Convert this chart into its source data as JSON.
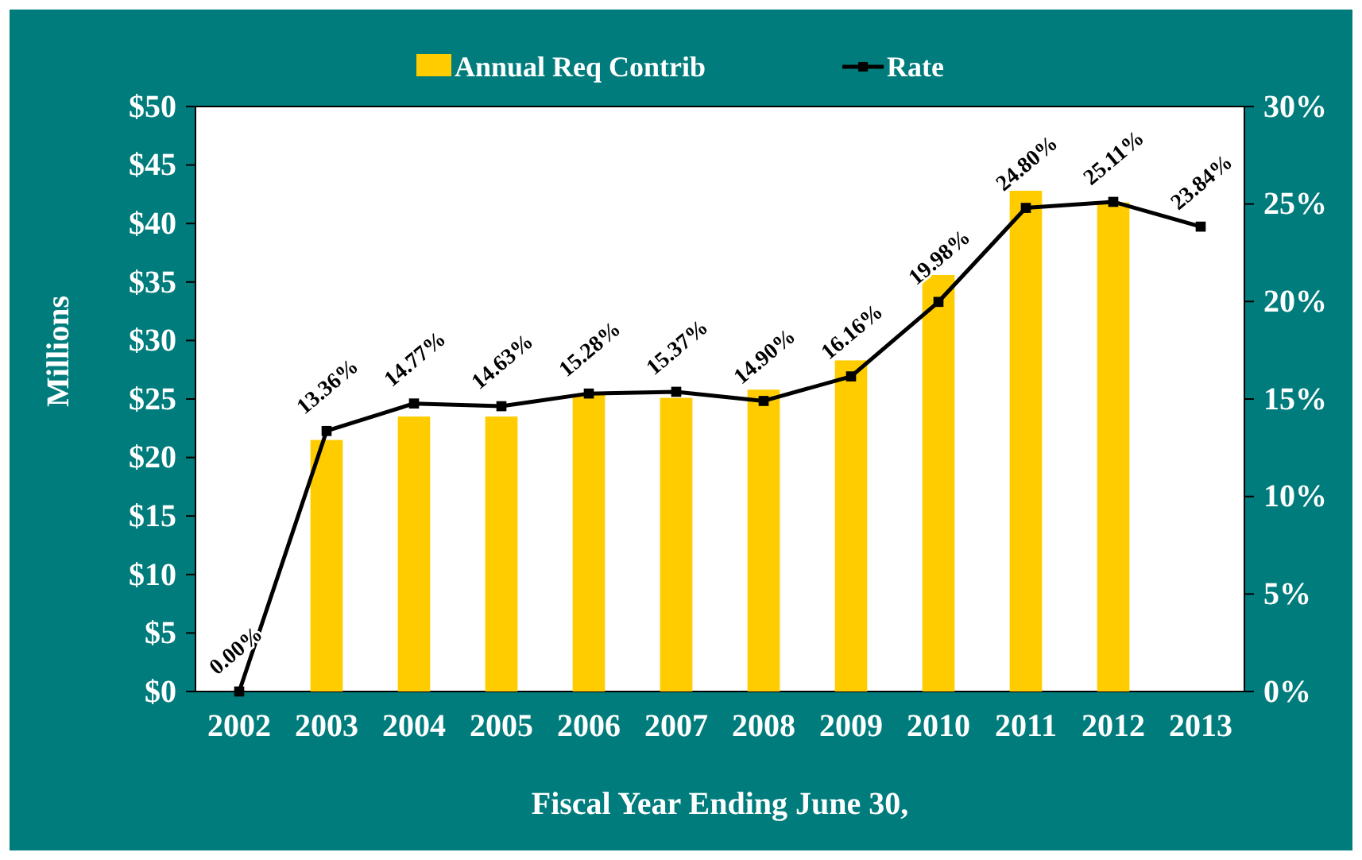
{
  "chart_data": {
    "type": "bar",
    "xlabel": "Fiscal Year Ending June 30,",
    "ylabel": "Millions",
    "categories": [
      "2002",
      "2003",
      "2004",
      "2005",
      "2006",
      "2007",
      "2008",
      "2009",
      "2010",
      "2011",
      "2012",
      "2013"
    ],
    "series": [
      {
        "name": "Annual Req Contrib",
        "color": "#ffcc00",
        "values": [
          null,
          21.5,
          23.5,
          23.5,
          25.4,
          25.1,
          25.8,
          28.3,
          35.6,
          42.8,
          41.8,
          null
        ]
      },
      {
        "name": "Rate",
        "type": "line",
        "axis": "y2",
        "color": "#000000",
        "marker": "square",
        "values": [
          0,
          13.36,
          14.77,
          14.63,
          15.28,
          15.37,
          14.9,
          16.16,
          19.98,
          24.8,
          25.11,
          23.84
        ],
        "value_labels": [
          "0.00%",
          "13.36%",
          "14.77%",
          "14.63%",
          "15.28%",
          "15.37%",
          "14.90%",
          "16.16%",
          "19.98%",
          "24.80%",
          "25.11%",
          "23.84%"
        ]
      }
    ],
    "ylim": [
      0,
      50
    ],
    "yticks": [
      {
        "value": 0,
        "label": "$0"
      },
      {
        "value": 5,
        "label": "$5"
      },
      {
        "value": 10,
        "label": "$10"
      },
      {
        "value": 15,
        "label": "$15"
      },
      {
        "value": 20,
        "label": "$20"
      },
      {
        "value": 25,
        "label": "$25"
      },
      {
        "value": 30,
        "label": "$30"
      },
      {
        "value": 35,
        "label": "$35"
      },
      {
        "value": 40,
        "label": "$40"
      },
      {
        "value": 45,
        "label": "$45"
      },
      {
        "value": 50,
        "label": "$50"
      }
    ],
    "y2lim": [
      0,
      30
    ],
    "y2ticks": [
      {
        "value": 0,
        "label": "0%"
      },
      {
        "value": 5,
        "label": "5%"
      },
      {
        "value": 10,
        "label": "10%"
      },
      {
        "value": 15,
        "label": "15%"
      },
      {
        "value": 20,
        "label": "20%"
      },
      {
        "value": 25,
        "label": "25%"
      },
      {
        "value": 30,
        "label": "30%"
      }
    ],
    "legend": "top",
    "grid": false
  }
}
